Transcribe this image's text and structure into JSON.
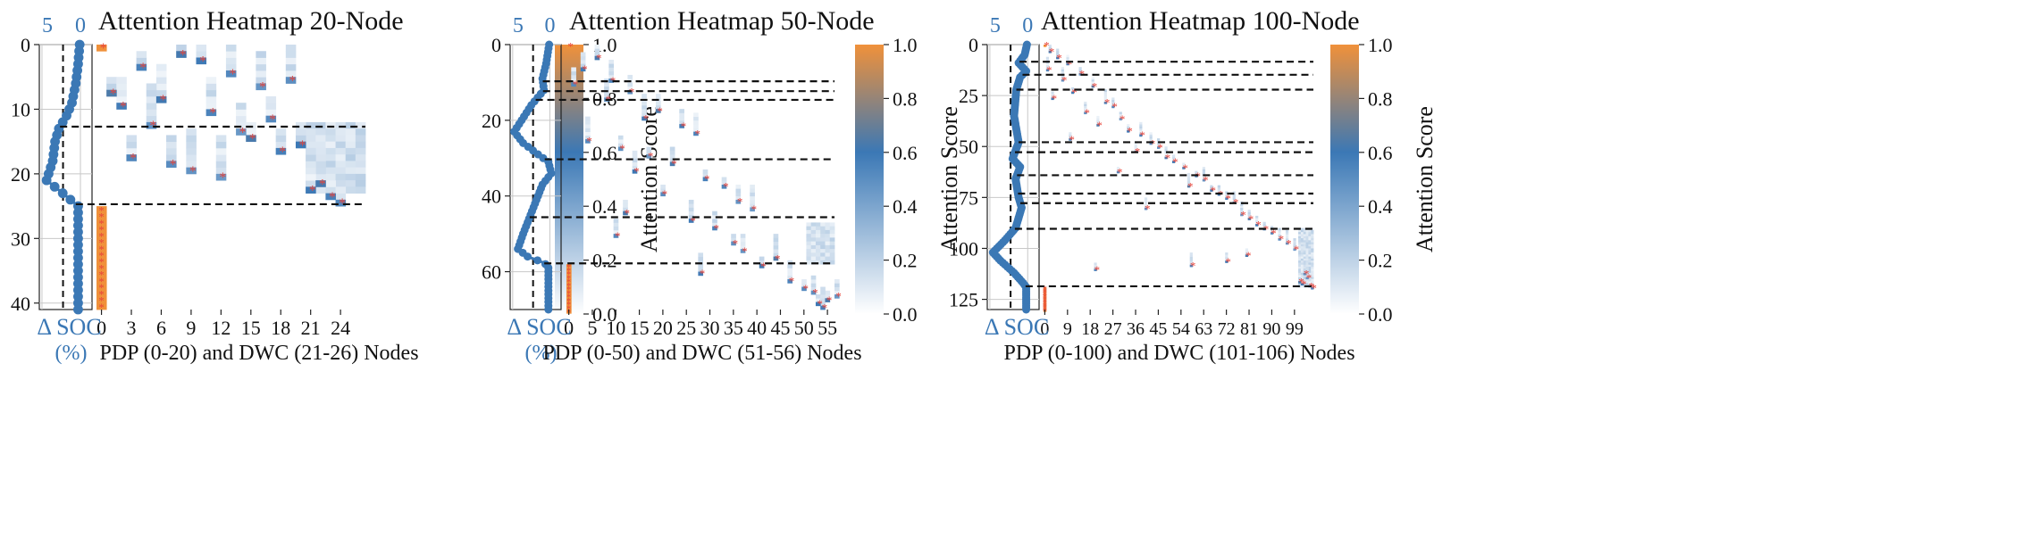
{
  "colorbar": {
    "label": "Attention Score",
    "ticks": [
      "0.0",
      "0.2",
      "0.4",
      "0.6",
      "0.8",
      "1.0"
    ]
  },
  "colors": {
    "soc": "#3b78b5",
    "low": "#ffffff",
    "mid": "#3b78b5",
    "high": "#f0913a",
    "star": "#e8443a"
  },
  "chart_data": [
    {
      "type": "heatmap",
      "title": "Attention Heatmap 20-Node",
      "xlabel": "PDP (0-20) and DWC (21-26) Nodes",
      "soc_label": "Δ SOC",
      "soc_unit": "(%)",
      "soc_ticks": [
        "5",
        "0"
      ],
      "y_ticks": [
        "0",
        "10",
        "20",
        "30",
        "40"
      ],
      "x_ticks": [
        "0",
        "3",
        "6",
        "9",
        "12",
        "15",
        "18",
        "21",
        "24"
      ],
      "n_nodes": 27,
      "n_steps": 41,
      "separators": [
        12.7,
        24.7
      ],
      "soc_profile": [
        [
          0,
          0.1
        ],
        [
          3,
          0.3
        ],
        [
          6,
          0.6
        ],
        [
          9,
          1.1
        ],
        [
          11,
          1.8
        ],
        [
          13,
          2.8
        ],
        [
          15,
          3.3
        ],
        [
          18,
          3.6
        ],
        [
          21,
          4.4
        ],
        [
          23,
          2.3
        ],
        [
          24.5,
          0.8
        ],
        [
          25,
          0.3
        ],
        [
          41,
          0.3
        ]
      ],
      "peaks": [
        [
          0,
          0
        ],
        [
          1,
          8
        ],
        [
          2,
          10
        ],
        [
          3,
          4
        ],
        [
          4,
          13
        ],
        [
          5,
          19
        ],
        [
          6,
          16
        ],
        [
          7,
          1
        ],
        [
          8,
          6
        ],
        [
          9,
          2
        ],
        [
          10,
          11
        ],
        [
          11,
          17
        ],
        [
          12,
          5
        ],
        [
          13,
          14
        ],
        [
          14,
          15
        ],
        [
          15,
          20
        ],
        [
          16,
          18
        ],
        [
          17,
          3
        ],
        [
          18,
          7
        ],
        [
          19,
          9
        ],
        [
          20,
          12
        ],
        [
          21,
          22
        ],
        [
          22,
          21
        ],
        [
          23,
          23
        ],
        [
          24,
          24
        ]
      ],
      "depot_rows": [
        25,
        40
      ],
      "dwc_block": {
        "cols": [
          21,
          26
        ],
        "rows": [
          12,
          22
        ]
      }
    },
    {
      "type": "heatmap",
      "title": "Attention Heatmap 50-Node",
      "xlabel": "PDP (0-50) and DWC (51-56) Nodes",
      "soc_label": "Δ SOC",
      "soc_unit": "(%)",
      "soc_ticks": [
        "5",
        "0"
      ],
      "y_ticks": [
        "0",
        "20",
        "40",
        "60"
      ],
      "x_ticks": [
        "0",
        "5",
        "10",
        "15",
        "20",
        "25",
        "30",
        "35",
        "40",
        "45",
        "50",
        "55"
      ],
      "n_nodes": 57,
      "n_steps": 70,
      "separators": [
        9.7,
        12.3,
        14.6,
        30.3,
        45.6,
        57.8
      ],
      "soc_profile": [
        [
          0,
          0.1
        ],
        [
          5,
          0.5
        ],
        [
          9,
          1.0
        ],
        [
          12,
          0.8
        ],
        [
          16,
          2.5
        ],
        [
          20,
          3.8
        ],
        [
          23,
          4.8
        ],
        [
          26,
          3.6
        ],
        [
          29,
          1.6
        ],
        [
          31,
          0.2
        ],
        [
          34,
          -0.2
        ],
        [
          37,
          1.0
        ],
        [
          42,
          2.0
        ],
        [
          46,
          2.8
        ],
        [
          50,
          3.6
        ],
        [
          54,
          4.3
        ],
        [
          56,
          3.0
        ],
        [
          57.5,
          1.0
        ],
        [
          58.5,
          0.2
        ],
        [
          70,
          0.2
        ]
      ],
      "peaks": [
        [
          0,
          0
        ],
        [
          3,
          6
        ],
        [
          6,
          3
        ],
        [
          9,
          9
        ],
        [
          10,
          1
        ],
        [
          12,
          13
        ],
        [
          14,
          8
        ],
        [
          17,
          19
        ],
        [
          19,
          16
        ],
        [
          21,
          24
        ],
        [
          23,
          27
        ],
        [
          25,
          4
        ],
        [
          27,
          11
        ],
        [
          29,
          17
        ],
        [
          31,
          22
        ],
        [
          33,
          14
        ],
        [
          35,
          29
        ],
        [
          37,
          33
        ],
        [
          39,
          20
        ],
        [
          41,
          36
        ],
        [
          43,
          39
        ],
        [
          44,
          12
        ],
        [
          46,
          26
        ],
        [
          48,
          31
        ],
        [
          50,
          10
        ],
        [
          52,
          35
        ],
        [
          54,
          37
        ],
        [
          56,
          44
        ],
        [
          58,
          41
        ],
        [
          60,
          28
        ],
        [
          62,
          47
        ],
        [
          64,
          50
        ],
        [
          65,
          52
        ],
        [
          66,
          57
        ],
        [
          67,
          55
        ],
        [
          68,
          53
        ],
        [
          69,
          54
        ]
      ],
      "depot_rows": [
        58,
        70
      ],
      "dwc_block": {
        "cols": [
          51,
          56
        ],
        "rows": [
          47,
          57
        ]
      }
    },
    {
      "type": "heatmap",
      "title": "Attention Heatmap 100-Node",
      "xlabel": "PDP (0-100) and DWC (101-106) Nodes",
      "soc_label": "Δ SOC",
      "soc_unit": "(%)",
      "soc_ticks": [
        "5",
        "0"
      ],
      "y_ticks": [
        "0",
        "25",
        "50",
        "75",
        "100",
        "125"
      ],
      "x_ticks": [
        "0",
        "9",
        "18",
        "27",
        "36",
        "45",
        "54",
        "63",
        "72",
        "81",
        "90",
        "99"
      ],
      "n_nodes": 107,
      "n_steps": 130,
      "separators": [
        8.4,
        14.8,
        22.1,
        47.9,
        52.8,
        64.1,
        73.1,
        77.8,
        90.4,
        118.6
      ],
      "soc_profile": [
        [
          0,
          0.1
        ],
        [
          5,
          0.4
        ],
        [
          9,
          1.2
        ],
        [
          13,
          0.2
        ],
        [
          16,
          1.0
        ],
        [
          22,
          1.5
        ],
        [
          35,
          1.8
        ],
        [
          48,
          1.2
        ],
        [
          56,
          2.0
        ],
        [
          60,
          1.0
        ],
        [
          66,
          1.6
        ],
        [
          75,
          1.2
        ],
        [
          80,
          0.8
        ],
        [
          90,
          1.6
        ],
        [
          96,
          3.0
        ],
        [
          102,
          4.6
        ],
        [
          106,
          3.6
        ],
        [
          112,
          1.8
        ],
        [
          117,
          0.6
        ],
        [
          119,
          0.2
        ],
        [
          130,
          0.2
        ]
      ],
      "peaks": [
        [
          0,
          0
        ],
        [
          3,
          2
        ],
        [
          6,
          5
        ],
        [
          9,
          9
        ],
        [
          12,
          1
        ],
        [
          14,
          14
        ],
        [
          17,
          7
        ],
        [
          20,
          19
        ],
        [
          23,
          11
        ],
        [
          26,
          3
        ],
        [
          28,
          24
        ],
        [
          30,
          27
        ],
        [
          33,
          16
        ],
        [
          36,
          30
        ],
        [
          39,
          21
        ],
        [
          42,
          33
        ],
        [
          44,
          38
        ],
        [
          46,
          10
        ],
        [
          48,
          42
        ],
        [
          50,
          45
        ],
        [
          52,
          36
        ],
        [
          55,
          48
        ],
        [
          57,
          51
        ],
        [
          60,
          55
        ],
        [
          62,
          29
        ],
        [
          64,
          60
        ],
        [
          66,
          63
        ],
        [
          69,
          57
        ],
        [
          71,
          66
        ],
        [
          73,
          69
        ],
        [
          75,
          72
        ],
        [
          77,
          75
        ],
        [
          80,
          40
        ],
        [
          83,
          78
        ],
        [
          85,
          81
        ],
        [
          88,
          84
        ],
        [
          90,
          87
        ],
        [
          92,
          90
        ],
        [
          95,
          93
        ],
        [
          97,
          96
        ],
        [
          100,
          99
        ],
        [
          103,
          80
        ],
        [
          106,
          72
        ],
        [
          108,
          58
        ],
        [
          110,
          20
        ],
        [
          112,
          103
        ],
        [
          114,
          104
        ],
        [
          116,
          101
        ],
        [
          117,
          102
        ],
        [
          118,
          105
        ],
        [
          119,
          106
        ]
      ],
      "depot_rows": [
        119,
        130
      ],
      "dwc_block": {
        "cols": [
          101,
          106
        ],
        "rows": [
          90,
          118
        ]
      }
    }
  ]
}
